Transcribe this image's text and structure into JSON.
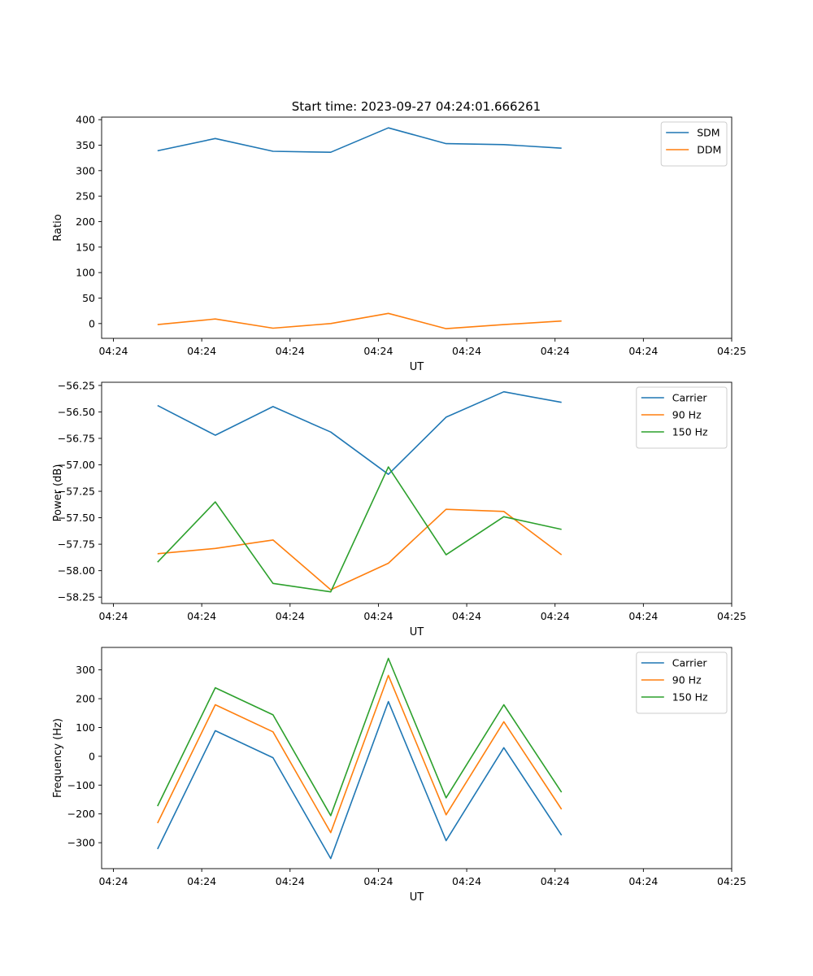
{
  "title": "Start time: 2023-09-27 04:24:01.666261",
  "colors": {
    "c0": "#1f77b4",
    "c1": "#ff7f0e",
    "c2": "#2ca02c"
  },
  "chart_data": [
    {
      "type": "line",
      "xlabel": "UT",
      "ylabel": "Ratio",
      "x_tick_labels": [
        "04:24",
        "04:24",
        "04:24",
        "04:24",
        "04:24",
        "04:24",
        "04:24",
        "04:25"
      ],
      "x_tick_values": [
        0,
        1.5,
        3,
        4.5,
        6,
        7.5,
        9,
        10.5
      ],
      "x": [
        0.75,
        1.73,
        2.71,
        3.69,
        4.67,
        5.65,
        6.63,
        7.61
      ],
      "xlim": [
        -0.2,
        10.5
      ],
      "ylim": [
        -29,
        405
      ],
      "y_ticks": [
        0,
        50,
        100,
        150,
        200,
        250,
        300,
        350,
        400
      ],
      "series": [
        {
          "name": "SDM",
          "values": [
            339,
            363,
            338,
            336,
            384,
            353,
            351,
            344
          ]
        },
        {
          "name": "DDM",
          "values": [
            -2,
            9,
            -9,
            0,
            20,
            -10,
            -2,
            5
          ]
        }
      ],
      "legend": "top-right"
    },
    {
      "type": "line",
      "xlabel": "UT",
      "ylabel": "Power (dB)",
      "x_tick_labels": [
        "04:24",
        "04:24",
        "04:24",
        "04:24",
        "04:24",
        "04:24",
        "04:24",
        "04:25"
      ],
      "x_tick_values": [
        0,
        1.5,
        3,
        4.5,
        6,
        7.5,
        9,
        10.5
      ],
      "x": [
        0.75,
        1.73,
        2.71,
        3.69,
        4.67,
        5.65,
        6.63,
        7.61
      ],
      "xlim": [
        -0.2,
        10.5
      ],
      "ylim": [
        -58.31,
        -56.22
      ],
      "y_ticks": [
        -58.25,
        -58.0,
        -57.75,
        -57.5,
        -57.25,
        -57.0,
        -56.75,
        -56.5,
        -56.25
      ],
      "y_tick_labels": [
        "−58.25",
        "−58.00",
        "−57.75",
        "−57.50",
        "−57.25",
        "−57.00",
        "−56.75",
        "−56.50",
        "−56.25"
      ],
      "series": [
        {
          "name": "Carrier",
          "values": [
            -56.44,
            -56.72,
            -56.45,
            -56.69,
            -57.09,
            -56.55,
            -56.31,
            -56.41
          ]
        },
        {
          "name": "90 Hz",
          "values": [
            -57.84,
            -57.79,
            -57.71,
            -58.18,
            -57.93,
            -57.42,
            -57.44,
            -57.85
          ]
        },
        {
          "name": "150 Hz",
          "values": [
            -57.92,
            -57.35,
            -58.12,
            -58.2,
            -57.02,
            -57.85,
            -57.49,
            -57.61
          ]
        }
      ],
      "legend": "top-right"
    },
    {
      "type": "line",
      "xlabel": "UT",
      "ylabel": "Frequency (Hz)",
      "x_tick_labels": [
        "04:24",
        "04:24",
        "04:24",
        "04:24",
        "04:24",
        "04:24",
        "04:24",
        "04:25"
      ],
      "x_tick_values": [
        0,
        1.5,
        3,
        4.5,
        6,
        7.5,
        9,
        10.5
      ],
      "x": [
        0.75,
        1.73,
        2.71,
        3.69,
        4.67,
        5.65,
        6.63,
        7.61
      ],
      "xlim": [
        -0.2,
        10.5
      ],
      "ylim": [
        -390,
        378
      ],
      "y_ticks": [
        -300,
        -200,
        -100,
        0,
        100,
        200,
        300
      ],
      "y_tick_labels": [
        "−300",
        "−200",
        "−100",
        "0",
        "100",
        "200",
        "300"
      ],
      "series": [
        {
          "name": "Carrier",
          "values": [
            -322,
            89,
            -5,
            -355,
            190,
            -293,
            30,
            -274
          ]
        },
        {
          "name": "90 Hz",
          "values": [
            -232,
            179,
            85,
            -265,
            281,
            -203,
            120,
            -184
          ]
        },
        {
          "name": "150 Hz",
          "values": [
            -173,
            238,
            144,
            -206,
            340,
            -144,
            179,
            -125
          ]
        }
      ],
      "legend": "top-right"
    }
  ]
}
